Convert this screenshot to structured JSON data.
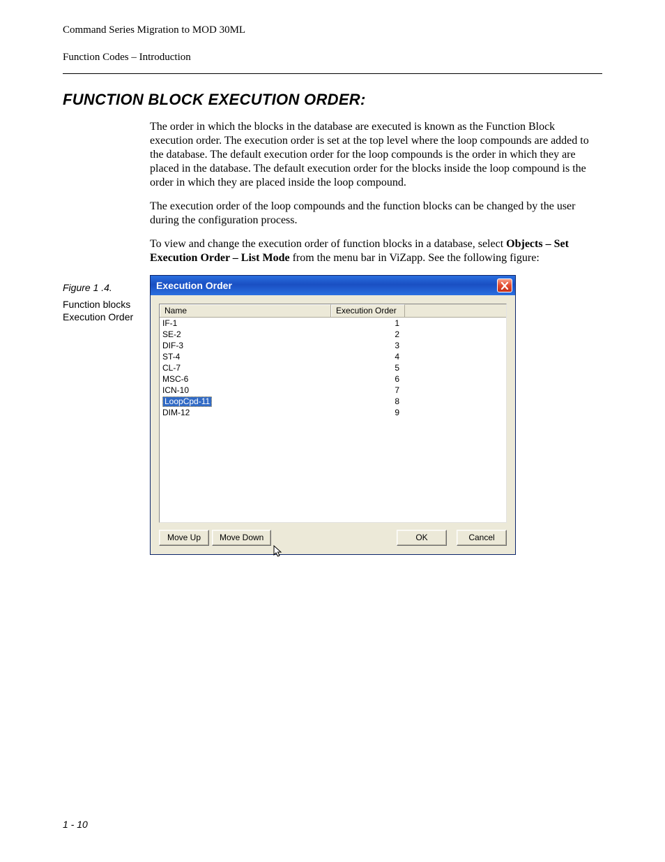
{
  "header": {
    "doc_title": "Command Series Migration to MOD 30ML",
    "section_name": "Function Codes – Introduction"
  },
  "section": {
    "title": "FUNCTION BLOCK EXECUTION ORDER:",
    "para1": "The order in which the blocks in the database are executed is known as the Function Block execution order. The execution order is set at the top level where the loop compounds are added to the database. The default execution order for the loop compounds is the order in which they are placed in the database. The default execution order for the blocks inside the loop compound is the order in which they are placed inside the loop compound.",
    "para2": "The execution order of the loop compounds and the function blocks can be changed by the user during the configuration process.",
    "para3_pre": "To view and change the execution order of function blocks in a database, select ",
    "para3_bold": "Objects – Set Execution Order – List Mode",
    "para3_post": " from the menu bar in ViZapp. See the following figure:"
  },
  "figure": {
    "label": "Figure 1 .4.",
    "desc": "Function blocks Execution Order"
  },
  "dialog": {
    "title": "Execution Order",
    "colors": {
      "titlebar_gradient_top": "#2a6fe0",
      "titlebar_gradient_mid": "#1a4fc2",
      "titlebar_text": "#ffffff",
      "body_bg": "#ece9d8",
      "list_bg": "#ffffff",
      "border_dark": "#848484",
      "selection_bg": "#316ac5",
      "selection_text": "#ffffff",
      "close_btn_top": "#f9a18a",
      "close_btn_mid": "#e24a2f",
      "close_btn_bot": "#c2301a"
    },
    "columns": {
      "name": "Name",
      "order": "Execution Order"
    },
    "rows": [
      {
        "name": "IF-1",
        "order": "1",
        "selected": false
      },
      {
        "name": "SE-2",
        "order": "2",
        "selected": false
      },
      {
        "name": "DIF-3",
        "order": "3",
        "selected": false
      },
      {
        "name": "ST-4",
        "order": "4",
        "selected": false
      },
      {
        "name": "CL-7",
        "order": "5",
        "selected": false
      },
      {
        "name": "MSC-6",
        "order": "6",
        "selected": false
      },
      {
        "name": "ICN-10",
        "order": "7",
        "selected": false
      },
      {
        "name": "LoopCpd-11",
        "order": "8",
        "selected": true
      },
      {
        "name": "DIM-12",
        "order": "9",
        "selected": false
      }
    ],
    "buttons": {
      "move_up": "Move Up",
      "move_down": "Move Down",
      "ok": "OK",
      "cancel": "Cancel"
    }
  },
  "page_number": "1 - 10"
}
